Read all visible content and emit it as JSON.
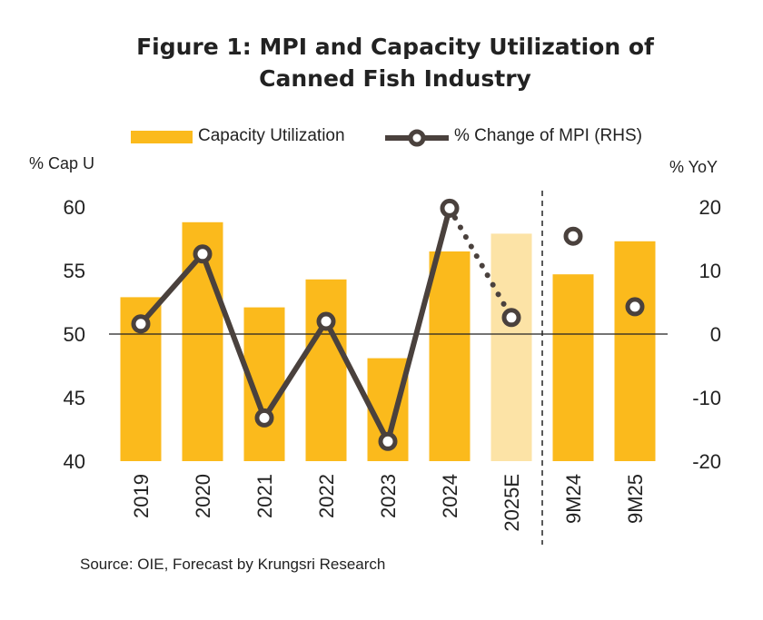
{
  "title_line1": "Figure 1: MPI and Capacity Utilization of",
  "title_line2": "Canned Fish Industry",
  "legend": {
    "bar_label": "Capacity Utilization",
    "line_label": "% Change of MPI (RHS)"
  },
  "left_axis_title": "% Cap U",
  "right_axis_title": "% YoY",
  "source": "Source: OIE, Forecast by Krungsri Research",
  "colors": {
    "bar": "#FBBA1C",
    "bar_forecast": "#FCE3A6",
    "line": "#4A413D",
    "zero_line": "#222222"
  },
  "chart_data": {
    "type": "bar+line",
    "title": "Figure 1: MPI and Capacity Utilization of Canned Fish Industry",
    "categories": [
      "2019",
      "2020",
      "2021",
      "2022",
      "2023",
      "2024",
      "2025E",
      "9M24",
      "9M25"
    ],
    "left_axis": {
      "label": "% Cap U",
      "ylim": [
        40,
        60
      ],
      "ticks": [
        40,
        45,
        50,
        55,
        60
      ]
    },
    "right_axis": {
      "label": "% YoY",
      "ylim": [
        -20,
        20
      ],
      "ticks": [
        -20,
        -10,
        0,
        10,
        20
      ]
    },
    "series": [
      {
        "name": "Capacity Utilization",
        "type": "bar",
        "axis": "left",
        "values": [
          52.9,
          58.8,
          52.1,
          54.3,
          48.1,
          56.5,
          57.9,
          54.7,
          57.3
        ],
        "forecast_index": 6
      },
      {
        "name": "% Change of MPI (RHS)",
        "type": "line",
        "axis": "right",
        "values": [
          1.6,
          12.6,
          -13.2,
          2.0,
          -16.9,
          19.8,
          2.6,
          15.4,
          4.3
        ],
        "connected_segments": [
          [
            0,
            1,
            2,
            3,
            4,
            5
          ]
        ],
        "dotted_segments": [
          [
            5,
            6
          ]
        ],
        "standalone_points": [
          7,
          8
        ]
      }
    ],
    "divider_after_index": 6
  }
}
